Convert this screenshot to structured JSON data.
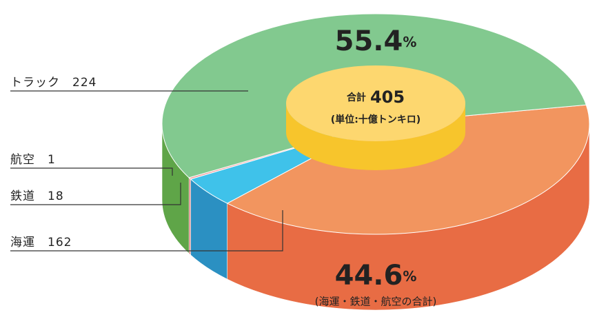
{
  "chart_data": {
    "type": "pie",
    "categories": [
      "トラック",
      "航空",
      "鉄道",
      "海運"
    ],
    "values": [
      224,
      1,
      18,
      162
    ],
    "colors": [
      "#82c98f",
      "#f2a3a3",
      "#3fc2ea",
      "#f2955f"
    ],
    "side_colors": [
      "#5fa548",
      "#d98080",
      "#2b90c2",
      "#e86c44"
    ],
    "shares": [
      55.4,
      44.6
    ],
    "share_unit": "%",
    "total_label": "合計",
    "total": 405,
    "unit_note": "(単位:十億トンキロ)",
    "group_note": "(海運・鉄道・航空の合計)"
  }
}
